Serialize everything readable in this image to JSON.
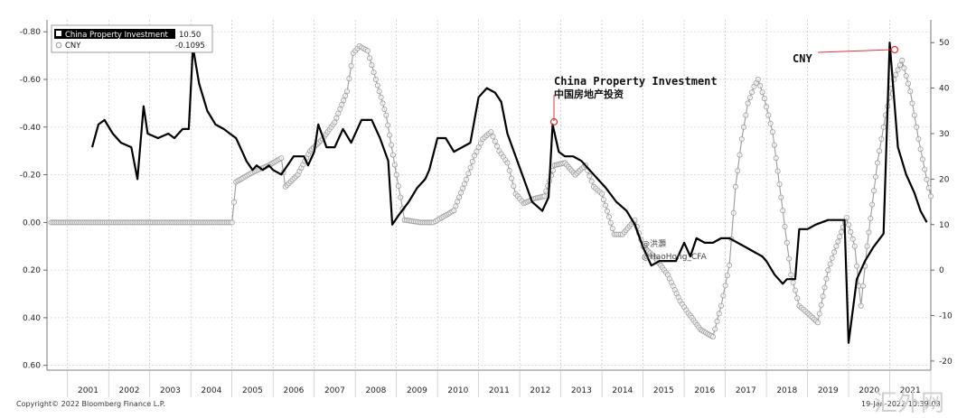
{
  "chart_data": {
    "type": "line",
    "title": "",
    "x_ticks": [
      "2001",
      "2002",
      "2003",
      "2004",
      "2005",
      "2006",
      "2007",
      "2008",
      "2009",
      "2010",
      "2011",
      "2012",
      "2013",
      "2014",
      "2015",
      "2016",
      "2017",
      "2018",
      "2019",
      "2020",
      "2021"
    ],
    "x_range": [
      2000.5,
      2022.0
    ],
    "left_axis": {
      "labels": [
        "-0.80",
        "-0.60",
        "-0.40",
        "-0.20",
        "0.00",
        "0.20",
        "0.40",
        "0.60"
      ],
      "range": [
        -0.85,
        0.62
      ],
      "inverted": true
    },
    "right_axis": {
      "labels": [
        "50",
        "40",
        "30",
        "20",
        "10",
        "0",
        "-10",
        "-20"
      ],
      "range": [
        -22,
        55
      ]
    },
    "legend": {
      "position": "top-left",
      "entries": [
        {
          "name": "China Property Investment",
          "value": "10.50",
          "marker": "square"
        },
        {
          "name": "CNY",
          "value": "-0.1095",
          "marker": "circle"
        }
      ]
    },
    "series": [
      {
        "name": "China Property Investment",
        "axis": "right",
        "color": "#000000",
        "points": [
          [
            2001.6,
            27
          ],
          [
            2001.75,
            32
          ],
          [
            2001.9,
            33
          ],
          [
            2002.1,
            30
          ],
          [
            2002.3,
            28
          ],
          [
            2002.55,
            27
          ],
          [
            2002.7,
            20
          ],
          [
            2002.85,
            36
          ],
          [
            2002.95,
            30
          ],
          [
            2003.2,
            29
          ],
          [
            2003.45,
            30
          ],
          [
            2003.6,
            29
          ],
          [
            2003.8,
            31
          ],
          [
            2003.95,
            31
          ],
          [
            2004.05,
            49
          ],
          [
            2004.2,
            41
          ],
          [
            2004.4,
            35
          ],
          [
            2004.6,
            32
          ],
          [
            2004.8,
            31
          ],
          [
            2004.95,
            30
          ],
          [
            2005.1,
            29
          ],
          [
            2005.25,
            26
          ],
          [
            2005.35,
            24
          ],
          [
            2005.5,
            22
          ],
          [
            2005.6,
            23
          ],
          [
            2005.75,
            22
          ],
          [
            2005.9,
            23
          ],
          [
            2006.0,
            22
          ],
          [
            2006.2,
            21
          ],
          [
            2006.5,
            25
          ],
          [
            2006.75,
            25
          ],
          [
            2006.85,
            23
          ],
          [
            2007.0,
            26
          ],
          [
            2007.1,
            32
          ],
          [
            2007.3,
            27
          ],
          [
            2007.5,
            27
          ],
          [
            2007.7,
            31
          ],
          [
            2007.9,
            28
          ],
          [
            2008.15,
            33
          ],
          [
            2008.4,
            33
          ],
          [
            2008.6,
            29
          ],
          [
            2008.8,
            24
          ],
          [
            2008.9,
            10
          ],
          [
            2009.05,
            12
          ],
          [
            2009.3,
            15
          ],
          [
            2009.5,
            18
          ],
          [
            2009.7,
            20
          ],
          [
            2009.8,
            22
          ],
          [
            2010.0,
            29
          ],
          [
            2010.2,
            29
          ],
          [
            2010.4,
            26
          ],
          [
            2010.6,
            27
          ],
          [
            2010.8,
            28
          ],
          [
            2011.0,
            38
          ],
          [
            2011.2,
            40
          ],
          [
            2011.4,
            39
          ],
          [
            2011.55,
            37
          ],
          [
            2011.7,
            30
          ],
          [
            2011.9,
            25
          ],
          [
            2012.1,
            20
          ],
          [
            2012.3,
            15
          ],
          [
            2012.55,
            13
          ],
          [
            2012.7,
            16
          ],
          [
            2012.8,
            32
          ],
          [
            2012.95,
            26
          ],
          [
            2013.1,
            25
          ],
          [
            2013.3,
            25
          ],
          [
            2013.5,
            24
          ],
          [
            2013.7,
            22
          ],
          [
            2013.9,
            20
          ],
          [
            2014.1,
            18
          ],
          [
            2014.35,
            15
          ],
          [
            2014.6,
            13
          ],
          [
            2014.8,
            10
          ],
          [
            2015.0,
            5
          ],
          [
            2015.2,
            1
          ],
          [
            2015.4,
            2
          ],
          [
            2015.6,
            2
          ],
          [
            2015.8,
            2
          ],
          [
            2016.0,
            6
          ],
          [
            2016.15,
            3
          ],
          [
            2016.3,
            7
          ],
          [
            2016.5,
            6
          ],
          [
            2016.7,
            6
          ],
          [
            2016.9,
            7
          ],
          [
            2017.1,
            7
          ],
          [
            2017.3,
            6
          ],
          [
            2017.5,
            5
          ],
          [
            2017.7,
            4
          ],
          [
            2017.9,
            3
          ],
          [
            2018.0,
            2
          ],
          [
            2018.2,
            -1
          ],
          [
            2018.4,
            -3
          ],
          [
            2018.5,
            -2
          ],
          [
            2018.7,
            -2
          ],
          [
            2018.8,
            9
          ],
          [
            2019.0,
            9
          ],
          [
            2019.2,
            10
          ],
          [
            2019.5,
            11
          ],
          [
            2019.9,
            11
          ],
          [
            2020.0,
            -16
          ],
          [
            2020.2,
            -2
          ],
          [
            2020.4,
            2
          ],
          [
            2020.6,
            5
          ],
          [
            2020.85,
            8
          ],
          [
            2021.0,
            50
          ],
          [
            2021.2,
            27
          ],
          [
            2021.4,
            21
          ],
          [
            2021.6,
            17
          ],
          [
            2021.75,
            13
          ],
          [
            2021.9,
            10.5
          ]
        ]
      },
      {
        "name": "CNY",
        "axis": "left",
        "color": "#9a9a9a",
        "points": [
          [
            2000.6,
            0.0
          ],
          [
            2005.0,
            0.0
          ],
          [
            2005.1,
            -0.17
          ],
          [
            2005.5,
            -0.21
          ],
          [
            2005.9,
            -0.24
          ],
          [
            2006.2,
            -0.27
          ],
          [
            2006.3,
            -0.15
          ],
          [
            2006.6,
            -0.2
          ],
          [
            2006.9,
            -0.3
          ],
          [
            2007.2,
            -0.35
          ],
          [
            2007.5,
            -0.42
          ],
          [
            2007.8,
            -0.55
          ],
          [
            2007.95,
            -0.71
          ],
          [
            2008.1,
            -0.74
          ],
          [
            2008.3,
            -0.72
          ],
          [
            2008.5,
            -0.6
          ],
          [
            2008.75,
            -0.45
          ],
          [
            2009.0,
            -0.2
          ],
          [
            2009.2,
            -0.01
          ],
          [
            2009.6,
            0.0
          ],
          [
            2009.9,
            0.0
          ],
          [
            2010.1,
            -0.02
          ],
          [
            2010.4,
            -0.05
          ],
          [
            2010.7,
            -0.18
          ],
          [
            2010.9,
            -0.28
          ],
          [
            2011.1,
            -0.35
          ],
          [
            2011.3,
            -0.38
          ],
          [
            2011.5,
            -0.3
          ],
          [
            2011.7,
            -0.25
          ],
          [
            2011.9,
            -0.12
          ],
          [
            2012.1,
            -0.08
          ],
          [
            2012.35,
            -0.1
          ],
          [
            2012.6,
            -0.11
          ],
          [
            2012.85,
            -0.24
          ],
          [
            2013.1,
            -0.25
          ],
          [
            2013.35,
            -0.2
          ],
          [
            2013.6,
            -0.24
          ],
          [
            2013.8,
            -0.15
          ],
          [
            2014.0,
            -0.12
          ],
          [
            2014.3,
            0.05
          ],
          [
            2014.5,
            0.05
          ],
          [
            2014.8,
            -0.01
          ],
          [
            2015.0,
            0.1
          ],
          [
            2015.3,
            0.15
          ],
          [
            2015.6,
            0.22
          ],
          [
            2015.9,
            0.33
          ],
          [
            2016.1,
            0.38
          ],
          [
            2016.4,
            0.45
          ],
          [
            2016.7,
            0.48
          ],
          [
            2016.9,
            0.35
          ],
          [
            2017.1,
            0.18
          ],
          [
            2017.25,
            -0.15
          ],
          [
            2017.4,
            -0.35
          ],
          [
            2017.55,
            -0.5
          ],
          [
            2017.7,
            -0.57
          ],
          [
            2017.8,
            -0.6
          ],
          [
            2017.95,
            -0.52
          ],
          [
            2018.15,
            -0.38
          ],
          [
            2018.4,
            -0.05
          ],
          [
            2018.6,
            0.22
          ],
          [
            2018.8,
            0.35
          ],
          [
            2019.0,
            0.38
          ],
          [
            2019.25,
            0.42
          ],
          [
            2019.5,
            0.2
          ],
          [
            2019.7,
            0.1
          ],
          [
            2019.95,
            -0.02
          ],
          [
            2020.15,
            0.1
          ],
          [
            2020.3,
            0.35
          ],
          [
            2020.45,
            0.1
          ],
          [
            2020.7,
            -0.25
          ],
          [
            2020.9,
            -0.45
          ],
          [
            2021.1,
            -0.6
          ],
          [
            2021.3,
            -0.68
          ],
          [
            2021.5,
            -0.55
          ],
          [
            2021.7,
            -0.35
          ],
          [
            2021.9,
            -0.18
          ],
          [
            2022.0,
            -0.11
          ]
        ]
      }
    ],
    "annotations": [
      {
        "text": "China Property Investment",
        "style": "mono",
        "anchor": "2012.8,32"
      },
      {
        "text": "中国房地产投资",
        "style": "cjk"
      },
      {
        "text": "CNY",
        "style": "mono",
        "anchor": "2021.9,49"
      }
    ]
  },
  "watermark": {
    "handle_name": "@洪灝",
    "handle_id": "@HaoHong_CFA"
  },
  "footer": {
    "copyright": "Copyright© 2022 Bloomberg Finance L.P.",
    "date": "19-Jan-2022 10:39:03",
    "logo": "汇外网"
  }
}
